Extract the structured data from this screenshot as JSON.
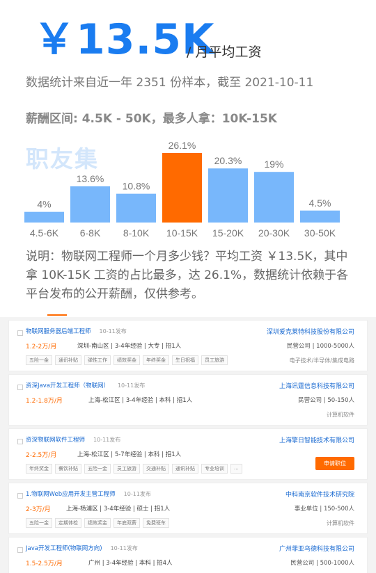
{
  "summary": {
    "big_salary": "￥13.5K",
    "per_month": "/ 月平均工资",
    "stat_note": "数据统计来自近一年 2351 份样本，截至 2021-10-11",
    "range_line": "薪酬区间: 4.5K - 50K，最多人拿：10K-15K",
    "watermark": "职友集",
    "description": "说明：物联网工程师一个月多少钱？平均工资 ￥13.5K，其中拿 10K-15K 工资的占比最多，达 26.1%，数据统计依赖于各平台发布的公开薪酬，仅供参考。"
  },
  "colors": {
    "accent": "#1a7cf0",
    "bar": "#78b7fb",
    "highlight": "#ff6a00",
    "link": "#1a6ad1"
  },
  "chart_data": {
    "type": "bar",
    "categories": [
      "4.5-6K",
      "6-8K",
      "8-10K",
      "10-15K",
      "15-20K",
      "20-30K",
      "30-50K"
    ],
    "values": [
      4,
      13.6,
      10.8,
      26.1,
      20.3,
      19,
      4.5
    ],
    "value_labels": [
      "4%",
      "13.6%",
      "10.8%",
      "26.1%",
      "20.3%",
      "19%",
      "4.5%"
    ],
    "highlight_index": 3,
    "ylim": [
      0,
      26.1
    ]
  },
  "jobs": [
    {
      "title": "物联网服务器后端工程师",
      "date": "10-11发布",
      "company": "深圳爱克莱特科技股份有限公司",
      "pay": "1.2-2万/月",
      "meta": "深圳-南山区 | 3-4年经验 | 大专 | 招1人",
      "company_meta": "民营公司 | 1000-5000人",
      "tags": [
        "五险一金",
        "通讯补贴",
        "弹性工作",
        "绩效奖金",
        "年终奖金",
        "生日祝福",
        "员工旅游"
      ],
      "industry": "电子技术/半导体/集成电路"
    },
    {
      "title": "资深Java开发工程师（物联网）",
      "date": "10-11发布",
      "company": "上海讯霆信息科技有限公司",
      "pay": "1.2-1.8万/月",
      "meta": "上海-松江区 | 3-4年经验 | 本科 | 招1人",
      "company_meta": "民营公司 | 50-150人",
      "tags": [],
      "industry": "计算机软件"
    },
    {
      "title": "资深物联网软件工程师",
      "date": "10-11发布",
      "company": "上海擎日智能技术有限公司",
      "pay": "2-2.5万/月",
      "meta": "上海-松江区 | 5-7年经验 | 本科 | 招1人",
      "company_meta": "",
      "tags": [
        "年终奖金",
        "餐饮补贴",
        "五险一金",
        "员工旅游",
        "交通补贴",
        "通讯补贴",
        "专业培训",
        "..."
      ],
      "industry": "",
      "apply": "申请职位"
    },
    {
      "title": "1.物联网Web应用开发主管工程师",
      "date": "10-11发布",
      "company": "中科南京软件技术研究院",
      "pay": "2-3万/月",
      "meta": "上海-杨浦区 | 3-4年经验 | 硕士 | 招1人",
      "company_meta": "事业单位 | 150-500人",
      "tags": [
        "五险一金",
        "定期体检",
        "绩效奖金",
        "年底双薪",
        "免费班车"
      ],
      "industry": "计算机软件"
    },
    {
      "title": "Java开发工程师(物联网方向)",
      "date": "10-11发布",
      "company": "广州菲亚乌德科技有限公司",
      "pay": "1.5-2.5万/月",
      "meta": "广州 | 3-4年经验 | 本科 | 招4人",
      "company_meta": "民营公司 | 500-1000人",
      "tags": [],
      "industry": ""
    }
  ]
}
